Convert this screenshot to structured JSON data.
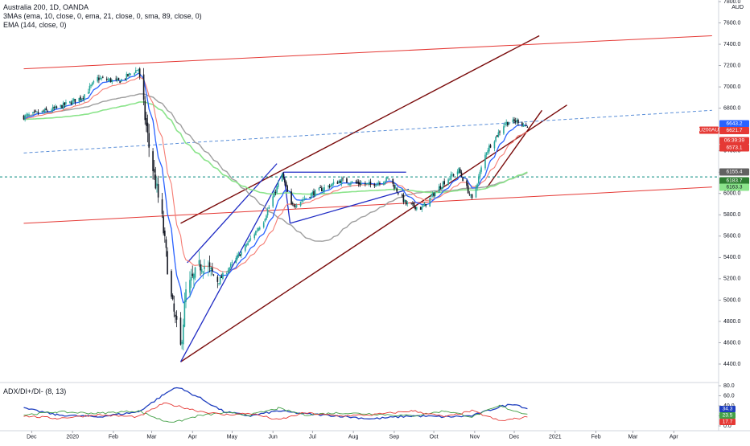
{
  "header": {
    "title": "Australia 200, 1D, OANDA",
    "study_mas": "3MAs (ema, 10, close, 0, ema, 21, close, 0, sma, 89, close, 0)",
    "study_ema": "EMA (144, close, 0)",
    "currency": "AUD"
  },
  "subpanel": {
    "title": "ADX/DI+/DI- (8, 13)"
  },
  "colors": {
    "up": "#26a69a",
    "down": "#131722",
    "ema10": "#2962ff",
    "ema21": "#f57c73",
    "sma89": "#9e9e9e",
    "ema144": "#8be48b",
    "outer_channel": "#7a0b0b",
    "red_line": "#e53935",
    "blue_pattern": "#1f2bc4",
    "dashed": "#5b8fd8",
    "adx": "#1f3fbf",
    "di_plus": "#43a047",
    "di_minus": "#e53935"
  },
  "price_axis": {
    "ticks": [
      "7800.0",
      "7600.0",
      "7400.0",
      "7200.0",
      "7000.0",
      "6800.0",
      "6600.0",
      "6400.0",
      "6200.0",
      "6000.0",
      "5800.0",
      "5600.0",
      "5400.0",
      "5200.0",
      "5000.0",
      "4800.0",
      "4600.0",
      "4400.0"
    ],
    "labels": [
      {
        "text": "6643.2",
        "color": "#2962ff"
      },
      {
        "text": "AU200AUD",
        "color": "#e53935"
      },
      {
        "text": "6621.7",
        "color": "#e53935"
      },
      {
        "text": "06:39:39",
        "color": "#e53935"
      },
      {
        "text": "6573.1",
        "color": "#e53935"
      },
      {
        "text": "6155.4",
        "color": "#616161"
      },
      {
        "text": "6183.7",
        "color": "#2e7d32"
      },
      {
        "text": "6163.3",
        "color": "#8be48b"
      }
    ]
  },
  "adx_axis": {
    "ticks": [
      "80.0",
      "60.0",
      "40.0",
      "20.0",
      "0.0"
    ],
    "labels": [
      {
        "text": "34.3",
        "color": "#1f3fbf"
      },
      {
        "text": "23.5",
        "color": "#43a047"
      },
      {
        "text": "17.7",
        "color": "#e53935"
      }
    ]
  },
  "time_axis": [
    "Dec",
    "2020",
    "Feb",
    "Mar",
    "Apr",
    "May",
    "Jun",
    "Jul",
    "Aug",
    "Sep",
    "Oct",
    "Nov",
    "Dec",
    "2021",
    "Feb",
    "Mar",
    "Apr"
  ],
  "chart_data": [
    {
      "type": "candlestick",
      "title": "Australia 200, 1D, OANDA",
      "ylim": [
        4200,
        7850
      ],
      "y_scale": "linear",
      "grid": false,
      "period": "1D",
      "anchors": [
        {
          "date": "2019-11-25",
          "close": 6720
        },
        {
          "date": "2019-12-20",
          "close": 6800
        },
        {
          "date": "2020-01-08",
          "close": 6900
        },
        {
          "date": "2020-01-20",
          "close": 7080
        },
        {
          "date": "2020-02-05",
          "close": 7050
        },
        {
          "date": "2020-02-20",
          "close": 7170
        },
        {
          "date": "2020-02-28",
          "close": 6440
        },
        {
          "date": "2020-03-09",
          "close": 5750
        },
        {
          "date": "2020-03-16",
          "close": 5000
        },
        {
          "date": "2020-03-23",
          "close": 4550
        },
        {
          "date": "2020-03-27",
          "close": 5070
        },
        {
          "date": "2020-04-08",
          "close": 5350
        },
        {
          "date": "2020-04-21",
          "close": 5180
        },
        {
          "date": "2020-05-08",
          "close": 5450
        },
        {
          "date": "2020-05-25",
          "close": 5750
        },
        {
          "date": "2020-06-08",
          "close": 6180
        },
        {
          "date": "2020-06-15",
          "close": 5880
        },
        {
          "date": "2020-07-01",
          "close": 6000
        },
        {
          "date": "2020-07-22",
          "close": 6120
        },
        {
          "date": "2020-08-14",
          "close": 6080
        },
        {
          "date": "2020-08-28",
          "close": 6140
        },
        {
          "date": "2020-09-10",
          "close": 5900
        },
        {
          "date": "2020-09-22",
          "close": 5860
        },
        {
          "date": "2020-10-08",
          "close": 6100
        },
        {
          "date": "2020-10-20",
          "close": 6220
        },
        {
          "date": "2020-10-30",
          "close": 5940
        },
        {
          "date": "2020-11-10",
          "close": 6400
        },
        {
          "date": "2020-11-24",
          "close": 6660
        },
        {
          "date": "2020-12-04",
          "close": 6680
        },
        {
          "date": "2020-12-11",
          "close": 6621.7
        }
      ],
      "overlays": [
        {
          "name": "EMA 10",
          "period": 10,
          "kind": "ema"
        },
        {
          "name": "EMA 21",
          "period": 21,
          "kind": "ema"
        },
        {
          "name": "SMA 89",
          "period": 89,
          "kind": "sma"
        },
        {
          "name": "EMA 144",
          "period": 144,
          "kind": "ema"
        }
      ],
      "trendlines": [
        {
          "style": "outer_channel",
          "from": {
            "date": "2020-03-23",
            "y": 4420
          },
          "to": {
            "date": "2021-01-10",
            "y": 6830
          }
        },
        {
          "style": "outer_channel",
          "from": {
            "date": "2020-03-23",
            "y": 5720
          },
          "to": {
            "date": "2020-12-20",
            "y": 7480
          }
        },
        {
          "style": "outer_channel",
          "from": {
            "date": "2020-11-10",
            "y": 6050
          },
          "to": {
            "date": "2020-12-22",
            "y": 6780
          }
        },
        {
          "style": "red_line",
          "from": {
            "date": "2019-11-25",
            "y": 7170
          },
          "to": {
            "date": "2021-04-30",
            "y": 7480
          }
        },
        {
          "style": "red_line",
          "from": {
            "date": "2019-11-25",
            "y": 5720
          },
          "to": {
            "date": "2021-04-30",
            "y": 6060
          }
        },
        {
          "style": "dashed",
          "from": {
            "date": "2019-11-25",
            "y": 6380
          },
          "to": {
            "date": "2021-04-30",
            "y": 6780
          }
        },
        {
          "style": "blue_pattern",
          "from": {
            "date": "2020-03-23",
            "y": 4420
          },
          "to": {
            "date": "2020-06-09",
            "y": 6200
          }
        },
        {
          "style": "blue_pattern",
          "from": {
            "date": "2020-03-28",
            "y": 5350
          },
          "to": {
            "date": "2020-06-04",
            "y": 6280
          }
        },
        {
          "style": "blue_pattern",
          "from": {
            "date": "2020-06-09",
            "y": 6200
          },
          "to": {
            "date": "2020-09-10",
            "y": 6200
          }
        },
        {
          "style": "blue_pattern",
          "from": {
            "date": "2020-06-14",
            "y": 5720
          },
          "to": {
            "date": "2020-09-12",
            "y": 6040
          }
        },
        {
          "style": "blue_pattern",
          "from": {
            "date": "2020-06-09",
            "y": 6200
          },
          "to": {
            "date": "2020-06-14",
            "y": 5720
          }
        }
      ],
      "hlines": [
        {
          "y": 6155.4,
          "style": "teal_dashed"
        }
      ]
    },
    {
      "type": "line",
      "title": "ADX/DI+/DI- (8, 13)",
      "ylim": [
        0,
        80
      ],
      "grid": false,
      "series": [
        {
          "name": "ADX",
          "color": "adx",
          "points": [
            [
              "2019-11-25",
              35
            ],
            [
              "2019-12-20",
              22
            ],
            [
              "2020-01-20",
              18
            ],
            [
              "2020-02-20",
              28
            ],
            [
              "2020-03-10",
              62
            ],
            [
              "2020-03-20",
              78
            ],
            [
              "2020-04-05",
              58
            ],
            [
              "2020-04-25",
              28
            ],
            [
              "2020-05-15",
              20
            ],
            [
              "2020-06-05",
              30
            ],
            [
              "2020-06-25",
              24
            ],
            [
              "2020-07-20",
              20
            ],
            [
              "2020-08-15",
              14
            ],
            [
              "2020-09-15",
              20
            ],
            [
              "2020-10-10",
              18
            ],
            [
              "2020-10-30",
              20
            ],
            [
              "2020-11-20",
              38
            ],
            [
              "2020-12-01",
              44
            ],
            [
              "2020-12-11",
              34.3
            ]
          ]
        },
        {
          "name": "DI+",
          "color": "di_plus",
          "points": [
            [
              "2019-11-25",
              22
            ],
            [
              "2019-12-20",
              28
            ],
            [
              "2020-01-20",
              25
            ],
            [
              "2020-02-20",
              30
            ],
            [
              "2020-03-10",
              10
            ],
            [
              "2020-03-20",
              8
            ],
            [
              "2020-04-05",
              20
            ],
            [
              "2020-04-25",
              26
            ],
            [
              "2020-05-15",
              22
            ],
            [
              "2020-06-05",
              35
            ],
            [
              "2020-06-25",
              22
            ],
            [
              "2020-07-20",
              26
            ],
            [
              "2020-08-15",
              24
            ],
            [
              "2020-09-15",
              20
            ],
            [
              "2020-10-10",
              30
            ],
            [
              "2020-10-30",
              18
            ],
            [
              "2020-11-20",
              40
            ],
            [
              "2020-12-01",
              30
            ],
            [
              "2020-12-11",
              23.5
            ]
          ]
        },
        {
          "name": "DI-",
          "color": "di_minus",
          "points": [
            [
              "2019-11-25",
              20
            ],
            [
              "2019-12-20",
              15
            ],
            [
              "2020-01-20",
              22
            ],
            [
              "2020-02-20",
              18
            ],
            [
              "2020-03-10",
              45
            ],
            [
              "2020-03-20",
              40
            ],
            [
              "2020-04-05",
              30
            ],
            [
              "2020-04-25",
              22
            ],
            [
              "2020-05-15",
              25
            ],
            [
              "2020-06-05",
              12
            ],
            [
              "2020-06-25",
              26
            ],
            [
              "2020-07-20",
              20
            ],
            [
              "2020-08-15",
              22
            ],
            [
              "2020-09-15",
              30
            ],
            [
              "2020-10-10",
              18
            ],
            [
              "2020-10-30",
              30
            ],
            [
              "2020-11-20",
              10
            ],
            [
              "2020-12-01",
              14
            ],
            [
              "2020-12-11",
              17.7
            ]
          ]
        }
      ]
    }
  ]
}
